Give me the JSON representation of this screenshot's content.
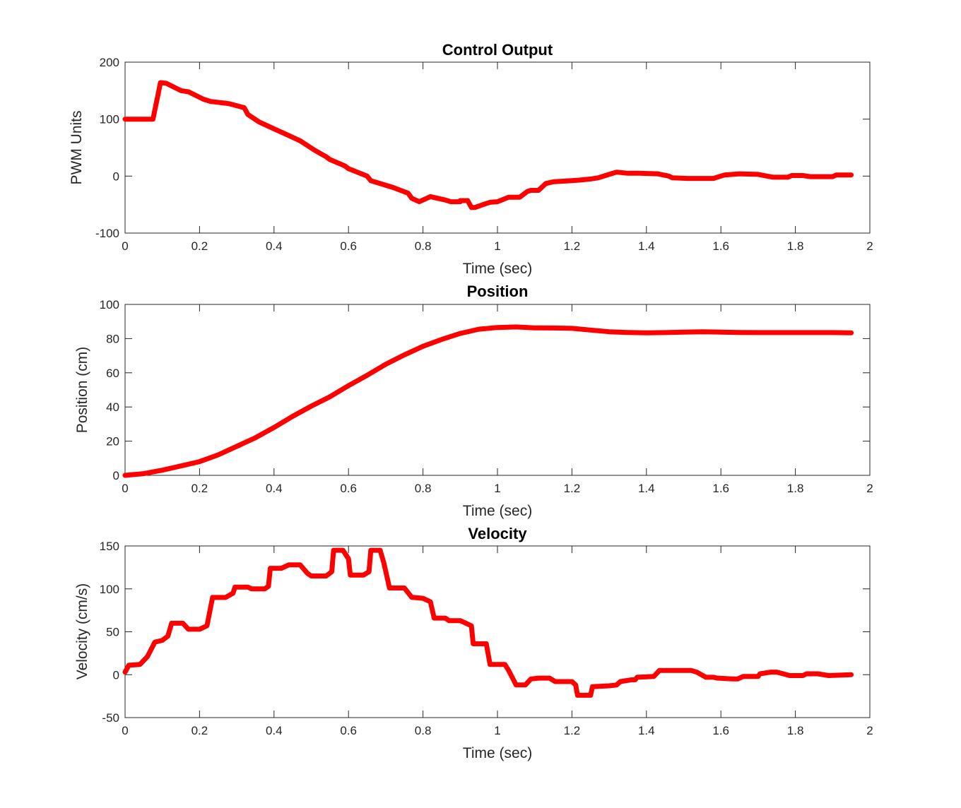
{
  "figure": {
    "line_color": "#ff0000"
  },
  "chart_data": [
    {
      "type": "line",
      "title": "Control Output",
      "xlabel": "Time (sec)",
      "ylabel": "PWM Units",
      "xlim": [
        0,
        2
      ],
      "ylim": [
        -100,
        200
      ],
      "xticks": [
        0,
        0.2,
        0.4,
        0.6,
        0.8,
        1,
        1.2,
        1.4,
        1.6,
        1.8,
        2
      ],
      "yticks": [
        -100,
        0,
        100,
        200
      ],
      "xtick_labels": [
        "0",
        "0.2",
        "0.4",
        "0.6",
        "0.8",
        "1",
        "1.2",
        "1.4",
        "1.6",
        "1.8",
        "2"
      ],
      "ytick_labels": [
        "-100",
        "0",
        "100",
        "200"
      ],
      "grid": false,
      "series": [
        {
          "x": [
            0,
            0.06,
            0.075,
            0.095,
            0.11,
            0.15,
            0.17,
            0.21,
            0.23,
            0.27,
            0.28,
            0.32,
            0.33,
            0.36,
            0.4,
            0.43,
            0.47,
            0.51,
            0.54,
            0.55,
            0.59,
            0.6,
            0.65,
            0.66,
            0.72,
            0.76,
            0.77,
            0.79,
            0.82,
            0.86,
            0.875,
            0.9,
            0.9,
            0.92,
            0.93,
            0.94,
            0.97,
            0.98,
            1,
            1.03,
            1.04,
            1.06,
            1.08,
            1.09,
            1.11,
            1.13,
            1.15,
            1.2,
            1.22,
            1.25,
            1.27,
            1.3,
            1.32,
            1.35,
            1.38,
            1.43,
            1.46,
            1.47,
            1.51,
            1.55,
            1.58,
            1.61,
            1.65,
            1.7,
            1.74,
            1.75,
            1.78,
            1.79,
            1.82,
            1.84,
            1.9,
            1.91,
            1.95
          ],
          "y": [
            100,
            100,
            100,
            164,
            163,
            150,
            148,
            135,
            131,
            128,
            127,
            120,
            108,
            95,
            83,
            74,
            62,
            45,
            34,
            29,
            18,
            13,
            0,
            -8,
            -20,
            -30,
            -39,
            -45,
            -36,
            -42,
            -45,
            -45,
            -43,
            -43,
            -55,
            -55,
            -48,
            -46,
            -45,
            -37,
            -37,
            -37,
            -27,
            -25,
            -25,
            -13,
            -10,
            -8,
            -7,
            -5,
            -3,
            3,
            7,
            5,
            5,
            4,
            0,
            -3,
            -4,
            -4,
            -4,
            2,
            4,
            3,
            -2,
            -2,
            -2,
            1,
            1,
            -1,
            -1,
            2,
            2
          ]
        }
      ]
    },
    {
      "type": "line",
      "title": "Position",
      "xlabel": "Time (sec)",
      "ylabel": "Position (cm)",
      "xlim": [
        0,
        2
      ],
      "ylim": [
        0,
        100
      ],
      "xticks": [
        0,
        0.2,
        0.4,
        0.6,
        0.8,
        1,
        1.2,
        1.4,
        1.6,
        1.8,
        2
      ],
      "yticks": [
        0,
        20,
        40,
        60,
        80,
        100
      ],
      "xtick_labels": [
        "0",
        "0.2",
        "0.4",
        "0.6",
        "0.8",
        "1",
        "1.2",
        "1.4",
        "1.6",
        "1.8",
        "2"
      ],
      "ytick_labels": [
        "0",
        "20",
        "40",
        "60",
        "80",
        "100"
      ],
      "grid": false,
      "series": [
        {
          "x": [
            0,
            0.05,
            0.1,
            0.15,
            0.2,
            0.25,
            0.3,
            0.35,
            0.4,
            0.45,
            0.5,
            0.55,
            0.6,
            0.65,
            0.7,
            0.75,
            0.8,
            0.85,
            0.9,
            0.95,
            1,
            1.05,
            1.1,
            1.15,
            1.2,
            1.25,
            1.3,
            1.35,
            1.4,
            1.45,
            1.5,
            1.55,
            1.6,
            1.65,
            1.7,
            1.75,
            1.8,
            1.85,
            1.9,
            1.95
          ],
          "y": [
            0,
            1,
            3,
            5.5,
            8,
            12,
            17,
            22,
            28,
            34.5,
            40.5,
            46,
            52.5,
            58.5,
            65,
            70.5,
            75.5,
            79.5,
            83,
            85.5,
            86.5,
            86.8,
            86.3,
            86.2,
            86,
            85,
            84,
            83.6,
            83.4,
            83.5,
            83.8,
            84,
            83.8,
            83.6,
            83.5,
            83.5,
            83.5,
            83.5,
            83.5,
            83.4
          ]
        }
      ]
    },
    {
      "type": "line",
      "title": "Velocity",
      "xlabel": "Time (sec)",
      "ylabel": "Velocity (cm/s)",
      "xlim": [
        0,
        2
      ],
      "ylim": [
        -50,
        150
      ],
      "xticks": [
        0,
        0.2,
        0.4,
        0.6,
        0.8,
        1,
        1.2,
        1.4,
        1.6,
        1.8,
        2
      ],
      "yticks": [
        -50,
        0,
        50,
        100,
        150
      ],
      "xtick_labels": [
        "0",
        "0.2",
        "0.4",
        "0.6",
        "0.8",
        "1",
        "1.2",
        "1.4",
        "1.6",
        "1.8",
        "2"
      ],
      "ytick_labels": [
        "-50",
        "0",
        "50",
        "100",
        "150"
      ],
      "grid": false,
      "series": [
        {
          "x": [
            0,
            0.01,
            0.04,
            0.06,
            0.08,
            0.1,
            0.115,
            0.125,
            0.155,
            0.17,
            0.2,
            0.22,
            0.235,
            0.27,
            0.29,
            0.295,
            0.33,
            0.34,
            0.375,
            0.385,
            0.39,
            0.42,
            0.44,
            0.47,
            0.49,
            0.5,
            0.54,
            0.555,
            0.56,
            0.585,
            0.6,
            0.605,
            0.64,
            0.655,
            0.66,
            0.685,
            0.695,
            0.71,
            0.75,
            0.77,
            0.775,
            0.8,
            0.82,
            0.83,
            0.86,
            0.87,
            0.9,
            0.93,
            0.935,
            0.97,
            0.98,
            1.02,
            1.03,
            1.05,
            1.075,
            1.09,
            1.11,
            1.14,
            1.155,
            1.2,
            1.21,
            1.215,
            1.25,
            1.255,
            1.3,
            1.32,
            1.33,
            1.36,
            1.37,
            1.375,
            1.42,
            1.435,
            1.52,
            1.535,
            1.56,
            1.58,
            1.59,
            1.63,
            1.645,
            1.66,
            1.7,
            1.705,
            1.735,
            1.75,
            1.785,
            1.79,
            1.82,
            1.83,
            1.86,
            1.89,
            1.95
          ],
          "y": [
            3,
            11,
            12,
            21,
            38,
            40,
            45,
            60,
            60,
            53,
            53,
            57,
            90,
            90,
            95,
            102,
            102,
            100,
            100,
            103,
            124,
            124,
            128,
            128,
            118,
            115,
            115,
            120,
            145,
            145,
            135,
            116,
            116,
            120,
            145,
            145,
            130,
            101,
            101,
            90,
            90,
            89,
            85,
            66,
            66,
            63,
            63,
            57,
            36,
            36,
            12,
            12,
            5,
            -12,
            -12,
            -5,
            -4,
            -4,
            -8,
            -8,
            -12,
            -24,
            -24,
            -14,
            -13,
            -12,
            -8,
            -6,
            -6,
            -3,
            -2,
            5,
            5,
            3,
            -3,
            -3,
            -4,
            -5,
            -5,
            -2,
            -2,
            1,
            3,
            3,
            -1,
            -1,
            -1,
            1,
            1,
            -1,
            0
          ]
        }
      ]
    }
  ]
}
